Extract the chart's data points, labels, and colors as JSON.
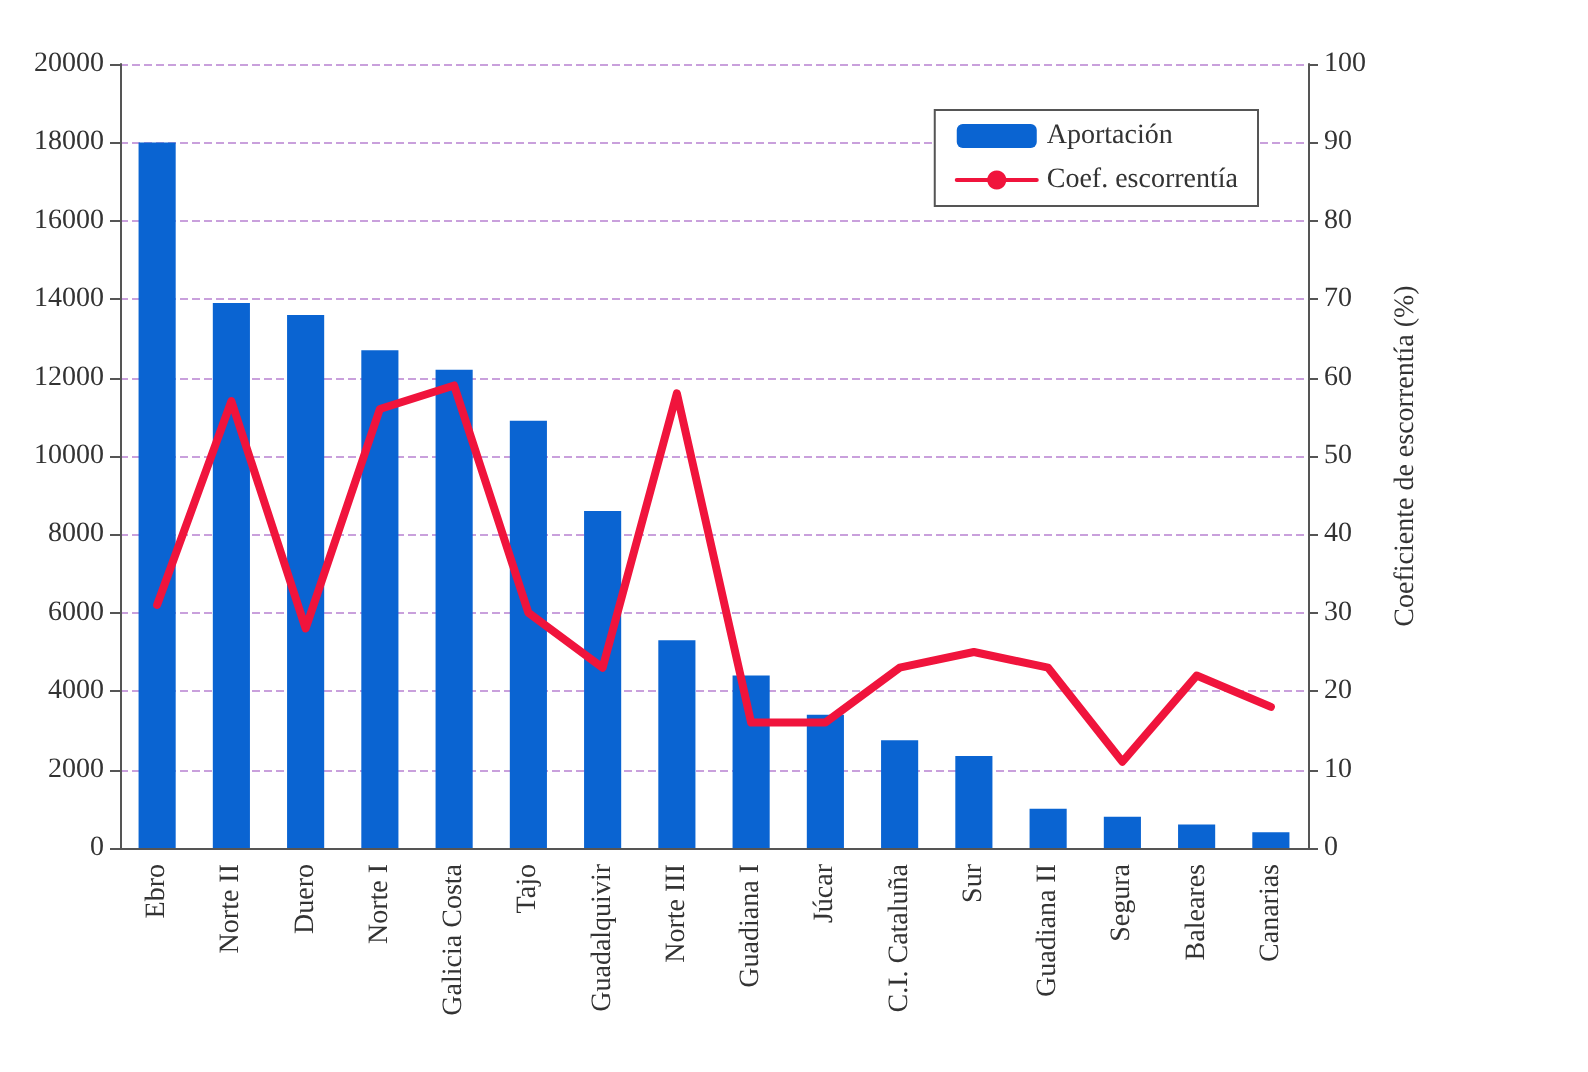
{
  "chart_data": {
    "type": "bar",
    "categories": [
      "Ebro",
      "Norte II",
      "Duero",
      "Norte I",
      "Galicia Costa",
      "Tajo",
      "Guadalquivir",
      "Norte III",
      "Guadiana I",
      "Júcar",
      "C.I. Cataluña",
      "Sur",
      "Guadiana II",
      "Segura",
      "Baleares",
      "Canarias"
    ],
    "series": [
      {
        "name": "Aportación",
        "color": "#0a64d2",
        "values": [
          18000,
          13900,
          13600,
          12700,
          12200,
          10900,
          8600,
          5300,
          4400,
          3400,
          2750,
          2350,
          1000,
          800,
          600,
          400
        ]
      },
      {
        "name": "Coef. escorrentía",
        "type": "line",
        "axis": "y2",
        "color": "#f0143c",
        "values": [
          31,
          57,
          28,
          56,
          59,
          30,
          23,
          58,
          16,
          16,
          23,
          25,
          23,
          11,
          22,
          18
        ]
      }
    ],
    "ylim": [
      0,
      20000
    ],
    "yticks": [
      0,
      2000,
      4000,
      6000,
      8000,
      10000,
      12000,
      14000,
      16000,
      18000,
      20000
    ],
    "y2label": "Coeficiente de escorrentía (%)",
    "y2lim": [
      0,
      100
    ],
    "y2ticks": [
      0,
      10,
      20,
      30,
      40,
      50,
      60,
      70,
      80,
      90,
      100
    ],
    "grid": "y",
    "legend": "top right",
    "marker": "none"
  }
}
